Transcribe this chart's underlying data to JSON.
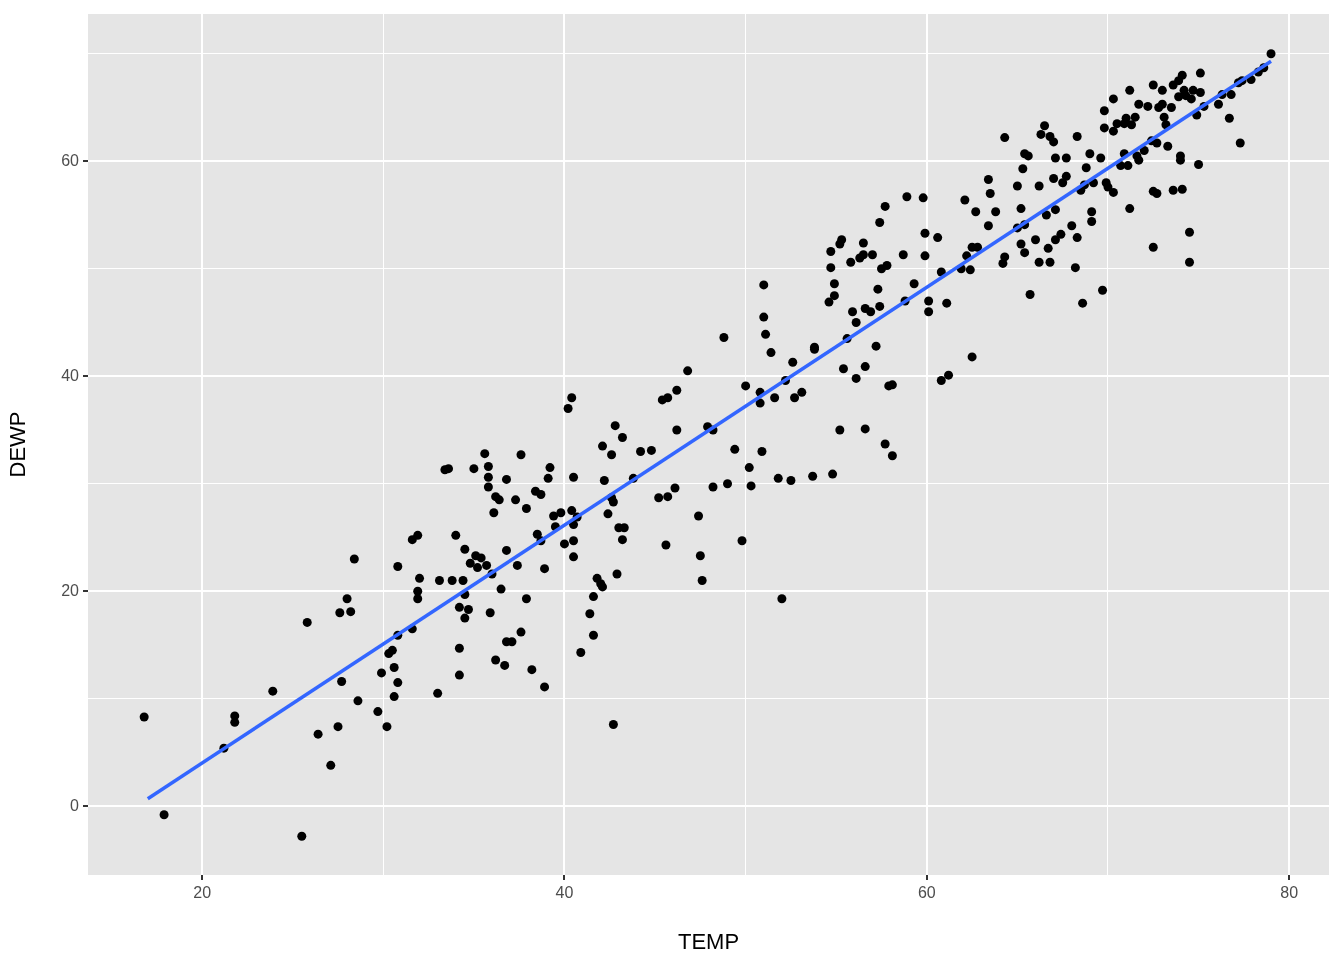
{
  "chart_data": {
    "type": "scatter",
    "xlabel": "TEMP",
    "ylabel": "DEWP",
    "xlim": [
      13.7,
      82.2
    ],
    "ylim": [
      -6.4,
      73.7
    ],
    "xticks": [
      20,
      {
        "value": 30,
        "label": null
      },
      40,
      {
        "value": 50,
        "label": null
      },
      60,
      {
        "value": 70,
        "label": null
      },
      80
    ],
    "yticks": [
      0,
      {
        "value": 10,
        "label": null
      },
      20,
      {
        "value": 30,
        "label": null
      },
      40,
      {
        "value": 50,
        "label": null
      },
      60,
      {
        "value": 70,
        "label": null
      }
    ],
    "grid": true,
    "legend": false,
    "series": [
      {
        "marker": "circle",
        "color": "#000000",
        "x": [
          16.8,
          17.9,
          21.2,
          21.8,
          21.8,
          23.9,
          25.5,
          25.8,
          26.4,
          27.1,
          27.5,
          27.6,
          27.7,
          28.0,
          28.2,
          28.4,
          28.6,
          29.7,
          29.9,
          30.2,
          30.3,
          30.5,
          30.6,
          30.6,
          30.8,
          30.8,
          30.8,
          31.6,
          31.6,
          31.9,
          31.9,
          31.9,
          32.0,
          33.0,
          33.1,
          33.4,
          33.6,
          33.8,
          34.0,
          34.2,
          34.2,
          34.2,
          34.4,
          34.5,
          34.5,
          34.5,
          34.7,
          34.8,
          35.0,
          35.1,
          35.2,
          35.4,
          35.6,
          35.7,
          35.8,
          35.8,
          35.8,
          35.9,
          36.0,
          36.1,
          36.2,
          36.2,
          36.4,
          36.5,
          36.7,
          36.8,
          36.8,
          36.8,
          37.1,
          37.3,
          37.4,
          37.6,
          37.6,
          37.9,
          37.9,
          38.2,
          38.4,
          38.5,
          38.7,
          38.7,
          38.9,
          38.9,
          39.1,
          39.2,
          39.4,
          39.5,
          39.8,
          40.0,
          40.2,
          40.4,
          40.4,
          40.5,
          40.5,
          40.5,
          40.5,
          40.7,
          40.9,
          41.4,
          41.6,
          41.6,
          41.8,
          42.0,
          42.1,
          42.1,
          42.2,
          42.4,
          42.6,
          42.7,
          42.6,
          42.7,
          42.8,
          42.9,
          43.0,
          43.2,
          43.2,
          43.3,
          43.8,
          44.2,
          44.8,
          45.2,
          45.4,
          45.7,
          45.6,
          45.7,
          46.1,
          46.2,
          46.2,
          46.8,
          47.4,
          47.5,
          47.6,
          47.9,
          48.2,
          48.2,
          48.8,
          49.0,
          49.4,
          49.8,
          50.0,
          50.2,
          50.3,
          50.8,
          50.8,
          50.9,
          51.0,
          51.0,
          51.1,
          51.4,
          51.6,
          51.8,
          52.0,
          52.2,
          52.5,
          52.6,
          52.7,
          53.1,
          53.7,
          53.8,
          53.8,
          54.6,
          54.7,
          54.7,
          54.8,
          54.9,
          54.9,
          55.2,
          55.2,
          55.3,
          55.4,
          55.6,
          55.8,
          55.9,
          56.1,
          56.1,
          56.3,
          56.5,
          56.5,
          56.6,
          56.6,
          56.6,
          56.9,
          57.0,
          57.2,
          57.3,
          57.4,
          57.4,
          57.5,
          57.7,
          57.7,
          57.8,
          57.9,
          58.1,
          58.1,
          58.7,
          58.8,
          58.9,
          59.3,
          59.8,
          59.9,
          59.9,
          60.1,
          60.1,
          60.6,
          60.8,
          60.8,
          61.1,
          61.2,
          61.9,
          62.1,
          62.2,
          62.4,
          62.5,
          62.5,
          62.7,
          62.8,
          63.4,
          63.4,
          63.5,
          63.8,
          64.2,
          64.3,
          64.3,
          65.0,
          65.0,
          65.2,
          65.2,
          65.3,
          65.4,
          65.4,
          65.4,
          65.6,
          65.7,
          66.0,
          66.2,
          66.2,
          66.3,
          66.5,
          66.6,
          66.7,
          66.8,
          66.8,
          67.0,
          67.0,
          67.1,
          67.1,
          67.1,
          67.4,
          67.5,
          67.7,
          67.7,
          68.0,
          68.2,
          68.3,
          68.3,
          68.5,
          68.6,
          68.7,
          68.8,
          69.0,
          69.1,
          69.1,
          69.2,
          69.6,
          69.7,
          69.8,
          69.8,
          69.9,
          70.0,
          70.3,
          70.3,
          70.3,
          70.5,
          70.7,
          70.9,
          70.9,
          71.0,
          71.1,
          71.2,
          71.2,
          71.3,
          71.5,
          71.6,
          71.7,
          71.7,
          72.0,
          72.2,
          72.4,
          72.5,
          72.5,
          72.5,
          72.7,
          72.7,
          72.8,
          73.0,
          73.0,
          73.1,
          73.2,
          73.3,
          73.5,
          73.6,
          73.6,
          73.9,
          73.9,
          74.0,
          74.0,
          74.1,
          74.1,
          74.2,
          74.3,
          74.5,
          74.5,
          74.6,
          74.7,
          74.9,
          75.0,
          75.1,
          75.1,
          75.3,
          76.1,
          76.3,
          76.7,
          76.8,
          77.2,
          77.3,
          77.4,
          77.9,
          78.3,
          78.6,
          79.0
        ],
        "values": [
          8.3,
          -0.8,
          5.4,
          8.4,
          7.8,
          10.7,
          -2.8,
          17.1,
          6.7,
          3.8,
          7.4,
          18.0,
          11.6,
          19.3,
          18.1,
          23.0,
          9.8,
          8.8,
          12.4,
          7.4,
          14.2,
          14.5,
          10.2,
          12.9,
          11.5,
          15.9,
          22.3,
          16.5,
          24.8,
          25.2,
          19.3,
          20.0,
          21.2,
          10.5,
          21.0,
          31.3,
          31.4,
          21.0,
          25.2,
          14.7,
          12.2,
          18.5,
          21.0,
          23.9,
          19.7,
          17.5,
          18.3,
          22.6,
          31.4,
          23.3,
          22.2,
          23.1,
          32.8,
          22.4,
          31.6,
          29.7,
          30.6,
          18.0,
          21.6,
          27.3,
          28.8,
          13.6,
          28.5,
          20.2,
          13.1,
          30.4,
          23.8,
          15.3,
          15.3,
          28.5,
          22.4,
          32.7,
          16.2,
          27.7,
          19.3,
          12.7,
          29.3,
          25.3,
          29.0,
          24.7,
          11.1,
          22.1,
          30.5,
          31.5,
          27.0,
          26.0,
          27.3,
          24.4,
          37.0,
          38.0,
          27.5,
          24.7,
          23.2,
          26.2,
          30.6,
          26.9,
          14.3,
          17.9,
          19.5,
          15.9,
          21.2,
          20.7,
          33.5,
          20.4,
          30.3,
          27.2,
          28.7,
          28.3,
          32.7,
          7.6,
          35.4,
          21.6,
          25.9,
          24.8,
          34.3,
          25.9,
          30.5,
          33.0,
          33.1,
          28.7,
          37.8,
          38.0,
          24.3,
          28.8,
          29.6,
          35.0,
          38.7,
          40.5,
          27.0,
          23.3,
          21.0,
          35.3,
          29.7,
          35.0,
          43.6,
          30.0,
          33.2,
          24.7,
          39.1,
          31.5,
          29.8,
          38.5,
          37.5,
          33.0,
          48.5,
          45.5,
          43.9,
          42.2,
          38.0,
          30.5,
          19.3,
          39.6,
          30.3,
          41.3,
          38.0,
          38.5,
          30.7,
          42.5,
          42.7,
          46.9,
          51.6,
          50.1,
          30.9,
          48.6,
          47.5,
          35.0,
          52.3,
          52.7,
          40.7,
          43.5,
          50.6,
          46.0,
          45.0,
          39.8,
          51.0,
          52.4,
          51.3,
          40.9,
          35.1,
          46.3,
          46.0,
          51.3,
          42.8,
          48.1,
          46.5,
          54.3,
          50.0,
          33.7,
          55.8,
          50.3,
          39.1,
          32.6,
          39.2,
          51.3,
          47.0,
          56.7,
          48.6,
          56.6,
          53.3,
          51.2,
          46.0,
          47.0,
          52.9,
          49.7,
          39.6,
          46.8,
          40.1,
          50.0,
          56.4,
          51.2,
          49.9,
          52.0,
          41.8,
          55.3,
          52.0,
          54.0,
          58.3,
          57.0,
          55.3,
          50.5,
          62.2,
          51.1,
          53.8,
          57.7,
          55.6,
          52.3,
          59.3,
          60.7,
          51.5,
          54.1,
          60.5,
          47.6,
          52.7,
          50.6,
          57.7,
          62.5,
          63.3,
          55.0,
          51.9,
          50.6,
          62.3,
          61.8,
          58.4,
          52.7,
          55.5,
          60.3,
          53.2,
          58.0,
          58.6,
          60.3,
          54.0,
          50.1,
          52.9,
          62.3,
          57.3,
          46.8,
          57.8,
          59.4,
          60.7,
          54.4,
          55.3,
          58.0,
          60.3,
          48.0,
          63.1,
          64.7,
          58.0,
          57.6,
          62.8,
          65.8,
          57.1,
          63.5,
          59.6,
          63.5,
          60.7,
          64.0,
          59.6,
          55.6,
          66.6,
          63.4,
          64.1,
          60.5,
          60.1,
          65.3,
          61.0,
          65.1,
          61.9,
          67.1,
          52.0,
          57.2,
          61.7,
          57.0,
          65.0,
          66.6,
          65.3,
          64.1,
          63.4,
          61.4,
          65.0,
          67.1,
          57.3,
          66.0,
          67.5,
          60.5,
          60.1,
          68.0,
          57.4,
          66.6,
          66.1,
          50.6,
          53.4,
          65.8,
          66.6,
          64.3,
          59.7,
          68.2,
          66.4,
          65.1,
          65.3,
          66.2,
          64.0,
          66.2,
          67.3,
          61.7,
          67.5,
          67.6,
          68.3,
          68.7,
          70.0
        ]
      },
      {
        "type": "line",
        "marker": "none",
        "color": "#3366ff",
        "x": [
          17,
          79
        ],
        "values": [
          0.7,
          69.3
        ]
      }
    ]
  }
}
